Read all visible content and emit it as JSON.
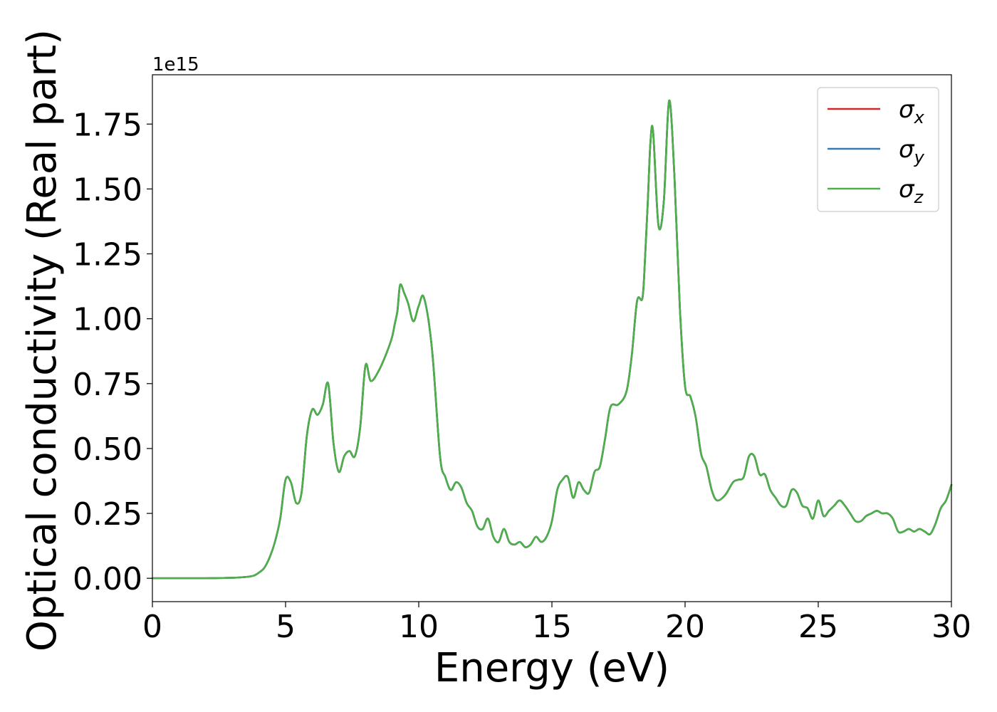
{
  "chart_data": {
    "type": "line",
    "title": "",
    "xlabel": "Energy (eV)",
    "ylabel": "Optical conductivity (Real part)",
    "y_offset_label": "1e15",
    "xlim": [
      0,
      30
    ],
    "ylim": [
      -0.09,
      1.94
    ],
    "x_ticks": [
      0,
      5,
      10,
      15,
      20,
      25,
      30
    ],
    "x_tick_labels": [
      "0",
      "5",
      "10",
      "15",
      "20",
      "25",
      "30"
    ],
    "y_ticks": [
      0,
      0.25,
      0.5,
      0.75,
      1.0,
      1.25,
      1.5,
      1.75
    ],
    "y_tick_labels": [
      "0.00",
      "0.25",
      "0.50",
      "0.75",
      "1.00",
      "1.25",
      "1.50",
      "1.75"
    ],
    "grid": false,
    "legend_position": "top-right",
    "series": [
      {
        "name": "σx",
        "sub": "x",
        "color": "#d62728"
      },
      {
        "name": "σy",
        "sub": "y",
        "color": "#3a78b0"
      },
      {
        "name": "σz",
        "sub": "z",
        "color": "#4daf4a"
      }
    ],
    "x": [
      0,
      1,
      2,
      2.5,
      3,
      3.5,
      3.8,
      4.0,
      4.2,
      4.4,
      4.6,
      4.8,
      5.0,
      5.2,
      5.4,
      5.6,
      5.8,
      6.0,
      6.2,
      6.4,
      6.6,
      6.8,
      7.0,
      7.2,
      7.4,
      7.6,
      7.8,
      8.0,
      8.2,
      8.5,
      8.8,
      9.0,
      9.1,
      9.2,
      9.3,
      9.45,
      9.6,
      9.8,
      10.0,
      10.2,
      10.5,
      10.8,
      11.0,
      11.2,
      11.4,
      11.6,
      11.8,
      12.0,
      12.2,
      12.4,
      12.6,
      12.8,
      13.0,
      13.2,
      13.4,
      13.6,
      13.8,
      14.0,
      14.2,
      14.4,
      14.6,
      14.8,
      15.0,
      15.2,
      15.4,
      15.6,
      15.8,
      16.0,
      16.2,
      16.4,
      16.6,
      16.8,
      17.0,
      17.2,
      17.5,
      17.8,
      18.0,
      18.2,
      18.4,
      18.5,
      18.6,
      18.7,
      18.8,
      19.0,
      19.2,
      19.4,
      19.6,
      19.8,
      20.0,
      20.2,
      20.4,
      20.6,
      20.8,
      21.0,
      21.2,
      21.5,
      21.8,
      22.0,
      22.2,
      22.4,
      22.6,
      22.8,
      23.0,
      23.2,
      23.4,
      23.6,
      23.8,
      24.0,
      24.2,
      24.4,
      24.6,
      24.8,
      25.0,
      25.2,
      25.4,
      25.6,
      25.8,
      26.0,
      26.2,
      26.4,
      26.6,
      26.8,
      27.0,
      27.2,
      27.4,
      27.6,
      27.8,
      28.0,
      28.2,
      28.4,
      28.6,
      28.8,
      29.0,
      29.2,
      29.4,
      29.6,
      29.8,
      30.0
    ],
    "values": [
      0.0,
      0.0,
      0.0,
      0.001,
      0.002,
      0.005,
      0.01,
      0.022,
      0.04,
      0.08,
      0.14,
      0.23,
      0.38,
      0.37,
      0.29,
      0.33,
      0.55,
      0.65,
      0.63,
      0.67,
      0.75,
      0.52,
      0.41,
      0.47,
      0.49,
      0.47,
      0.58,
      0.82,
      0.76,
      0.8,
      0.87,
      0.93,
      0.98,
      1.03,
      1.13,
      1.1,
      1.06,
      0.99,
      1.05,
      1.08,
      0.88,
      0.47,
      0.39,
      0.34,
      0.37,
      0.35,
      0.29,
      0.26,
      0.2,
      0.19,
      0.23,
      0.16,
      0.14,
      0.19,
      0.14,
      0.13,
      0.14,
      0.12,
      0.13,
      0.16,
      0.14,
      0.16,
      0.22,
      0.34,
      0.38,
      0.39,
      0.31,
      0.37,
      0.34,
      0.33,
      0.41,
      0.43,
      0.54,
      0.66,
      0.67,
      0.72,
      0.86,
      1.07,
      1.08,
      1.24,
      1.45,
      1.68,
      1.72,
      1.36,
      1.45,
      1.84,
      1.55,
      1.05,
      0.74,
      0.7,
      0.62,
      0.48,
      0.43,
      0.34,
      0.3,
      0.32,
      0.37,
      0.38,
      0.39,
      0.47,
      0.47,
      0.4,
      0.4,
      0.34,
      0.31,
      0.28,
      0.28,
      0.34,
      0.33,
      0.28,
      0.27,
      0.23,
      0.3,
      0.24,
      0.26,
      0.28,
      0.3,
      0.28,
      0.25,
      0.22,
      0.22,
      0.24,
      0.25,
      0.26,
      0.25,
      0.25,
      0.23,
      0.18,
      0.18,
      0.19,
      0.18,
      0.19,
      0.18,
      0.17,
      0.21,
      0.27,
      0.3,
      0.36
    ]
  }
}
